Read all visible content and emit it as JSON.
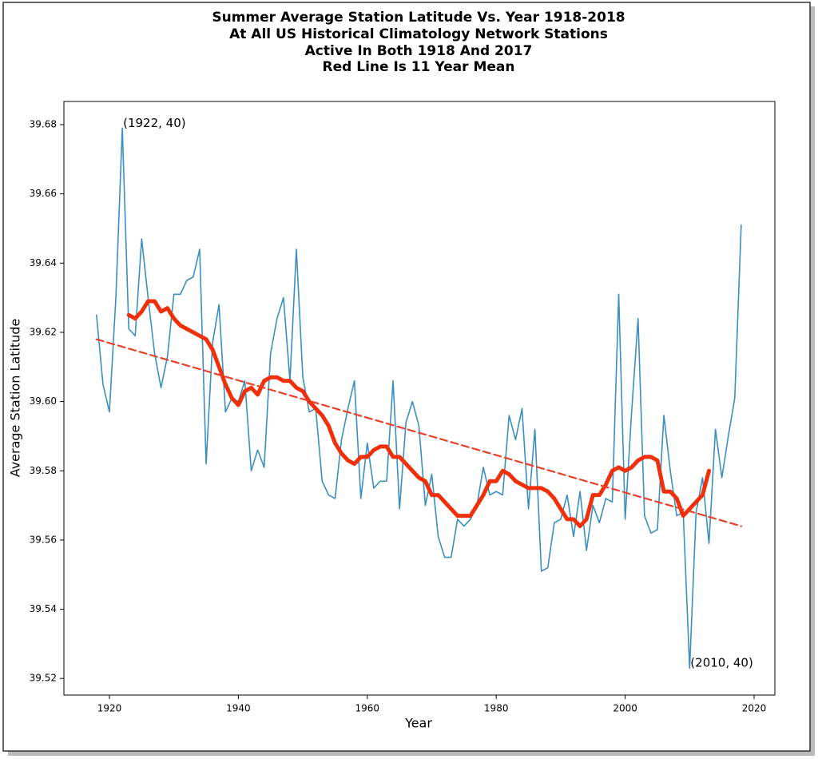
{
  "chart_data": {
    "type": "line",
    "title": [
      "Summer Average Station Latitude Vs. Year 1918-2018",
      "At All US Historical Climatology Network Stations",
      "Active In Both 1918 And 2017",
      "Red Line Is 11 Year Mean"
    ],
    "x_label": "Year",
    "y_label": "Average Station Latitude",
    "xlim": [
      1912.94,
      2023.22
    ],
    "ylim": [
      39.5152,
      39.6867
    ],
    "xticks": [
      1920,
      1940,
      1960,
      1980,
      2000,
      2020
    ],
    "yticks": [
      39.52,
      39.54,
      39.56,
      39.58,
      {
        "value": 39.6,
        "label": "39.60"
      },
      39.62,
      39.64,
      39.66,
      39.68
    ],
    "grid": false,
    "series": [
      {
        "color": "#3a8fc0",
        "width": 1.6,
        "dash": "none",
        "x": [
          1918,
          1919,
          1920,
          1921,
          1922,
          1923,
          1924,
          1925,
          1926,
          1927,
          1928,
          1929,
          1930,
          1931,
          1932,
          1933,
          1934,
          1935,
          1936,
          1937,
          1938,
          1939,
          1940,
          1941,
          1942,
          1943,
          1944,
          1945,
          1946,
          1947,
          1948,
          1949,
          1950,
          1951,
          1952,
          1953,
          1954,
          1955,
          1956,
          1957,
          1958,
          1959,
          1960,
          1961,
          1962,
          1963,
          1964,
          1965,
          1966,
          1967,
          1968,
          1969,
          1970,
          1971,
          1972,
          1973,
          1974,
          1975,
          1976,
          1977,
          1978,
          1979,
          1980,
          1981,
          1982,
          1983,
          1984,
          1985,
          1986,
          1987,
          1988,
          1989,
          1990,
          1991,
          1992,
          1993,
          1994,
          1995,
          1996,
          1997,
          1998,
          1999,
          2000,
          2001,
          2002,
          2003,
          2004,
          2005,
          2006,
          2007,
          2008,
          2009,
          2010,
          2011,
          2012,
          2013,
          2014,
          2015,
          2016,
          2017,
          2018
        ],
        "values": [
          39.625,
          39.605,
          39.597,
          39.63,
          39.679,
          39.621,
          39.619,
          39.647,
          39.63,
          39.614,
          39.604,
          39.613,
          39.631,
          39.631,
          39.635,
          39.636,
          39.644,
          39.582,
          39.617,
          39.628,
          39.597,
          39.601,
          39.6,
          39.606,
          39.58,
          39.586,
          39.581,
          39.614,
          39.624,
          39.63,
          39.606,
          39.644,
          39.607,
          39.597,
          39.598,
          39.577,
          39.573,
          39.572,
          39.589,
          39.598,
          39.606,
          39.572,
          39.588,
          39.575,
          39.577,
          39.577,
          39.606,
          39.569,
          39.594,
          39.6,
          39.593,
          39.57,
          39.579,
          39.561,
          39.555,
          39.555,
          39.566,
          39.564,
          39.566,
          39.57,
          39.581,
          39.573,
          39.574,
          39.573,
          39.596,
          39.589,
          39.598,
          39.569,
          39.592,
          39.551,
          39.552,
          39.565,
          39.566,
          39.573,
          39.561,
          39.574,
          39.557,
          39.57,
          39.565,
          39.572,
          39.571,
          39.631,
          39.566,
          39.597,
          39.624,
          39.567,
          39.562,
          39.563,
          39.596,
          39.58,
          39.567,
          39.568,
          39.523,
          39.568,
          39.578,
          39.559,
          39.592,
          39.578,
          39.59,
          39.601,
          39.651
        ]
      },
      {
        "color": "#f0300a",
        "width": 5,
        "dash": "none",
        "x": [
          1923,
          1924,
          1925,
          1926,
          1927,
          1928,
          1929,
          1930,
          1931,
          1932,
          1933,
          1934,
          1935,
          1936,
          1937,
          1938,
          1939,
          1940,
          1941,
          1942,
          1943,
          1944,
          1945,
          1946,
          1947,
          1948,
          1949,
          1950,
          1951,
          1952,
          1953,
          1954,
          1955,
          1956,
          1957,
          1958,
          1959,
          1960,
          1961,
          1962,
          1963,
          1964,
          1965,
          1966,
          1967,
          1968,
          1969,
          1970,
          1971,
          1972,
          1973,
          1974,
          1975,
          1976,
          1977,
          1978,
          1979,
          1980,
          1981,
          1982,
          1983,
          1984,
          1985,
          1986,
          1987,
          1988,
          1989,
          1990,
          1991,
          1992,
          1993,
          1994,
          1995,
          1996,
          1997,
          1998,
          1999,
          2000,
          2001,
          2002,
          2003,
          2004,
          2005,
          2006,
          2007,
          2008,
          2009,
          2010,
          2011,
          2012,
          2013
        ],
        "values": [
          39.625,
          39.624,
          39.626,
          39.629,
          39.629,
          39.626,
          39.627,
          39.624,
          39.622,
          39.621,
          39.62,
          39.619,
          39.618,
          39.615,
          39.61,
          39.605,
          39.601,
          39.599,
          39.603,
          39.604,
          39.602,
          39.606,
          39.607,
          39.607,
          39.606,
          39.606,
          39.604,
          39.603,
          39.6,
          39.598,
          39.596,
          39.593,
          39.588,
          39.585,
          39.583,
          39.582,
          39.584,
          39.584,
          39.586,
          39.587,
          39.587,
          39.584,
          39.584,
          39.582,
          39.58,
          39.578,
          39.577,
          39.573,
          39.573,
          39.571,
          39.569,
          39.567,
          39.567,
          39.567,
          39.57,
          39.573,
          39.577,
          39.577,
          39.58,
          39.579,
          39.577,
          39.576,
          39.575,
          39.575,
          39.575,
          39.574,
          39.572,
          39.569,
          39.566,
          39.566,
          39.564,
          39.566,
          39.573,
          39.573,
          39.576,
          39.58,
          39.581,
          39.58,
          39.581,
          39.583,
          39.584,
          39.584,
          39.583,
          39.574,
          39.574,
          39.572,
          39.567,
          39.569,
          39.571,
          39.573,
          39.58
        ]
      },
      {
        "color": "#e8402a",
        "width": 2.2,
        "dash": "9,5",
        "x": [
          1918,
          2018
        ],
        "values": [
          39.618,
          39.564
        ]
      }
    ],
    "annotations": [
      {
        "text": "(1922, 40)",
        "x": 1922,
        "y": 39.679
      },
      {
        "text": "(2010, 40)",
        "x": 2010,
        "y": 39.523
      }
    ]
  }
}
